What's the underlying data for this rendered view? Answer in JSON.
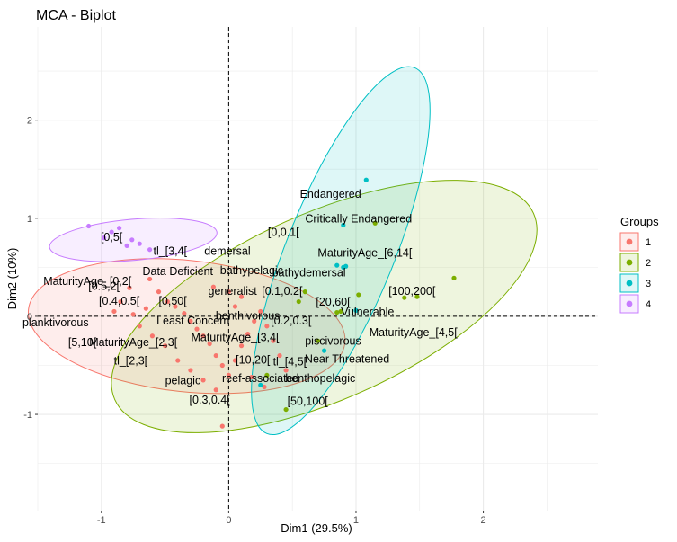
{
  "chart_data": {
    "type": "scatter",
    "title": "MCA - Biplot",
    "xlabel": "Dim1 (29.5%)",
    "ylabel": "Dim2 (10%)",
    "xlim": [
      -1.5,
      2.9
    ],
    "ylim": [
      -1.98,
      2.95
    ],
    "x_ticks": [
      -1,
      0,
      1,
      2
    ],
    "y_ticks": [
      -1,
      0,
      1,
      2
    ],
    "x_tick_labels": [
      "-1",
      "0",
      "1",
      "2"
    ],
    "y_tick_labels": [
      "-1",
      "0",
      "1",
      "2"
    ],
    "grid": true,
    "reference_lines": {
      "x": 0,
      "y": 0,
      "style": "dashed"
    },
    "legend": {
      "title": "Groups",
      "placement": "right",
      "entries": [
        "1",
        "2",
        "3",
        "4"
      ]
    },
    "colors": {
      "1": "#F8766D",
      "2": "#7CAE00",
      "3": "#00BFC4",
      "4": "#C77CFF"
    },
    "series": [
      {
        "name": "1",
        "points": [
          {
            "x": -0.78,
            "y": 0.29
          },
          {
            "x": -0.62,
            "y": 0.38
          },
          {
            "x": -0.55,
            "y": 0.25
          },
          {
            "x": -0.48,
            "y": 0.15
          },
          {
            "x": -0.42,
            "y": 0.1
          },
          {
            "x": -0.35,
            "y": 0.03
          },
          {
            "x": -0.3,
            "y": -0.05
          },
          {
            "x": -0.25,
            "y": -0.13
          },
          {
            "x": -0.2,
            "y": -0.2
          },
          {
            "x": -0.15,
            "y": -0.28
          },
          {
            "x": -0.1,
            "y": -0.4
          },
          {
            "x": -0.05,
            "y": -0.5
          },
          {
            "x": 0.0,
            "y": -0.6
          },
          {
            "x": 0.05,
            "y": -0.45
          },
          {
            "x": 0.1,
            "y": -0.3
          },
          {
            "x": 0.15,
            "y": -0.18
          },
          {
            "x": 0.2,
            "y": -0.05
          },
          {
            "x": 0.25,
            "y": 0.05
          },
          {
            "x": 0.3,
            "y": -0.1
          },
          {
            "x": 0.35,
            "y": -0.25
          },
          {
            "x": 0.4,
            "y": -0.4
          },
          {
            "x": 0.45,
            "y": -0.55
          },
          {
            "x": -0.7,
            "y": -0.1
          },
          {
            "x": -0.6,
            "y": -0.2
          },
          {
            "x": -0.5,
            "y": -0.3
          },
          {
            "x": -0.4,
            "y": -0.45
          },
          {
            "x": -0.3,
            "y": -0.55
          },
          {
            "x": -0.2,
            "y": -0.65
          },
          {
            "x": -0.1,
            "y": -0.75
          },
          {
            "x": -0.05,
            "y": -1.12
          },
          {
            "x": -0.9,
            "y": 0.05
          },
          {
            "x": -0.85,
            "y": 0.15
          },
          {
            "x": -0.75,
            "y": 0.02
          },
          {
            "x": -0.65,
            "y": 0.08
          },
          {
            "x": 0.05,
            "y": 0.1
          },
          {
            "x": 0.1,
            "y": 0.2
          },
          {
            "x": 0.0,
            "y": 0.25
          },
          {
            "x": -0.12,
            "y": 0.3
          },
          {
            "x": 0.28,
            "y": -0.72
          },
          {
            "x": 0.18,
            "y": -0.62
          }
        ]
      },
      {
        "name": "2",
        "points": [
          {
            "x": 0.85,
            "y": 0.04
          },
          {
            "x": 0.88,
            "y": 0.05
          },
          {
            "x": 1.02,
            "y": 0.22
          },
          {
            "x": 1.15,
            "y": 0.95
          },
          {
            "x": 1.38,
            "y": 0.19
          },
          {
            "x": 1.48,
            "y": 0.2
          },
          {
            "x": 1.77,
            "y": 0.39
          },
          {
            "x": 0.55,
            "y": 0.15
          },
          {
            "x": 0.7,
            "y": -0.25
          },
          {
            "x": 0.45,
            "y": -0.95
          },
          {
            "x": 0.3,
            "y": -0.6
          },
          {
            "x": 0.6,
            "y": 0.25
          }
        ]
      },
      {
        "name": "3",
        "points": [
          {
            "x": 1.08,
            "y": 1.39
          },
          {
            "x": 0.9,
            "y": 0.93
          },
          {
            "x": 0.85,
            "y": 0.52
          },
          {
            "x": 0.9,
            "y": 0.5
          },
          {
            "x": 0.92,
            "y": 0.51
          },
          {
            "x": 1.0,
            "y": 0.06
          },
          {
            "x": 0.75,
            "y": -0.35
          },
          {
            "x": 0.25,
            "y": -0.7
          }
        ]
      },
      {
        "name": "4",
        "points": [
          {
            "x": -1.1,
            "y": 0.92
          },
          {
            "x": -0.98,
            "y": 0.8
          },
          {
            "x": -0.92,
            "y": 0.86
          },
          {
            "x": -0.86,
            "y": 0.9
          },
          {
            "x": -0.76,
            "y": 0.78
          },
          {
            "x": -0.7,
            "y": 0.74
          },
          {
            "x": -0.8,
            "y": 0.72
          },
          {
            "x": -0.62,
            "y": 0.68
          }
        ]
      }
    ],
    "ellipses": [
      {
        "group": "1",
        "cx": -0.33,
        "cy": -0.1,
        "rx": 1.25,
        "ry": 0.67,
        "angle": -6
      },
      {
        "group": "2",
        "cx": 0.75,
        "cy": 0.1,
        "rx": 1.8,
        "ry": 0.95,
        "angle": 24
      },
      {
        "group": "3",
        "cx": 0.88,
        "cy": 0.67,
        "rx": 1.55,
        "ry": 0.55,
        "angle": 68
      },
      {
        "group": "4",
        "cx": -0.75,
        "cy": 0.78,
        "rx": 0.66,
        "ry": 0.21,
        "angle": 5
      }
    ],
    "category_labels": [
      {
        "text": "Endangered",
        "x": 0.8,
        "y": 1.25,
        "px": 0.8,
        "py": 1.25
      },
      {
        "text": "Critically Endangered",
        "x": 1.02,
        "y": 1.0,
        "px": 1.02,
        "py": 1.0
      },
      {
        "text": "[0,0.1[",
        "x": 0.43,
        "y": 0.86,
        "px": 0.43,
        "py": 0.86
      },
      {
        "text": "MaturityAge_[6,14[",
        "x": 1.07,
        "y": 0.65,
        "px": 1.07,
        "py": 0.65
      },
      {
        "text": "bathydemersal",
        "x": 0.63,
        "y": 0.45,
        "px": 0.63,
        "py": 0.45
      },
      {
        "text": "[100,200[",
        "x": 1.44,
        "y": 0.26,
        "px": 1.44,
        "py": 0.26
      },
      {
        "text": "[20,60[",
        "x": 0.82,
        "y": 0.15,
        "px": 0.82,
        "py": 0.15
      },
      {
        "text": "Vulnerable",
        "x": 1.09,
        "y": 0.05,
        "px": 1.09,
        "py": 0.05
      },
      {
        "text": "MaturityAge_[4,5[",
        "x": 1.45,
        "y": -0.16,
        "px": 1.45,
        "py": -0.16
      },
      {
        "text": "piscivorous",
        "x": 0.82,
        "y": -0.25,
        "px": 0.82,
        "py": -0.25
      },
      {
        "text": "Near Threatened",
        "x": 0.93,
        "y": -0.43,
        "px": 0.93,
        "py": -0.43
      },
      {
        "text": "benthopelagic",
        "x": 0.72,
        "y": -0.63,
        "px": 0.72,
        "py": -0.63
      },
      {
        "text": "[50,100[",
        "x": 0.62,
        "y": -0.86,
        "px": 0.62,
        "py": -0.86
      },
      {
        "text": "tl_[4,5[",
        "x": 0.48,
        "y": -0.46,
        "px": 0.48,
        "py": -0.46
      },
      {
        "text": "reef-associated",
        "x": 0.25,
        "y": -0.63,
        "px": 0.25,
        "py": -0.63
      },
      {
        "text": "[0.3,0.4[",
        "x": -0.15,
        "y": -0.85,
        "px": -0.15,
        "py": -0.85
      },
      {
        "text": "[10,20[",
        "x": 0.19,
        "y": -0.44,
        "px": 0.19,
        "py": -0.44
      },
      {
        "text": "MaturityAge_[3,4[",
        "x": 0.05,
        "y": -0.21,
        "px": 0.05,
        "py": -0.21
      },
      {
        "text": "[0.2,0.3[",
        "x": 0.49,
        "y": -0.04,
        "px": 0.49,
        "py": -0.04
      },
      {
        "text": "benthivorous",
        "x": 0.15,
        "y": 0.01,
        "px": 0.15,
        "py": 0.01
      },
      {
        "text": "generalist",
        "x": 0.03,
        "y": 0.26,
        "px": 0.03,
        "py": 0.26
      },
      {
        "text": "[0.1,0.2[",
        "x": 0.42,
        "y": 0.26,
        "px": 0.42,
        "py": 0.26
      },
      {
        "text": "bathypelagic",
        "x": 0.18,
        "y": 0.47,
        "px": 0.18,
        "py": 0.47
      },
      {
        "text": "demersal",
        "x": -0.01,
        "y": 0.67,
        "px": -0.01,
        "py": 0.67
      },
      {
        "text": "tl_[3,4[",
        "x": -0.46,
        "y": 0.67,
        "px": -0.46,
        "py": 0.67
      },
      {
        "text": "Data Deficient",
        "x": -0.4,
        "y": 0.46,
        "px": -0.4,
        "py": 0.46
      },
      {
        "text": "[0,5[",
        "x": -0.92,
        "y": 0.81,
        "px": -0.92,
        "py": 0.81
      },
      {
        "text": "[0.5,2[",
        "x": -0.98,
        "y": 0.31,
        "px": -0.98,
        "py": 0.31
      },
      {
        "text": "MaturityAge_[0,2[",
        "x": -1.11,
        "y": 0.36,
        "px": -1.11,
        "py": 0.36
      },
      {
        "text": "[0.4,0.5[",
        "x": -0.86,
        "y": 0.16,
        "px": -0.86,
        "py": 0.16
      },
      {
        "text": "[0,50[",
        "x": -0.44,
        "y": 0.16,
        "px": -0.44,
        "py": 0.16
      },
      {
        "text": "planktivorous",
        "x": -1.36,
        "y": -0.06,
        "px": -1.36,
        "py": -0.06
      },
      {
        "text": "Least Concern",
        "x": -0.28,
        "y": -0.04,
        "px": -0.28,
        "py": -0.04
      },
      {
        "text": "[5,10[",
        "x": -1.15,
        "y": -0.26,
        "px": -1.15,
        "py": -0.26
      },
      {
        "text": "MaturityAge_[2,3[",
        "x": -0.75,
        "y": -0.26,
        "px": -0.75,
        "py": -0.26
      },
      {
        "text": "tl_[2,3[",
        "x": -0.77,
        "y": -0.45,
        "px": -0.77,
        "py": -0.45
      },
      {
        "text": "pelagic",
        "x": -0.36,
        "y": -0.65,
        "px": -0.36,
        "py": -0.65
      }
    ]
  }
}
